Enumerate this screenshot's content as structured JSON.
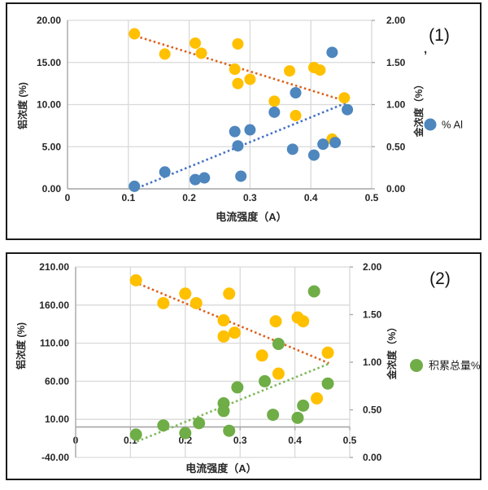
{
  "figure": {
    "background": "#FFFFFF",
    "colors": {
      "border": "#1A1A1A",
      "grid": "#D9D9D9",
      "axis": "#A6A6A6",
      "text": "#262626",
      "gold": "#FFC000",
      "blue": "#4E86BE",
      "green": "#6FAD47",
      "trend_orange": "#DD611C",
      "trend_blue": "#4472C4",
      "trend_green": "#7FB85A"
    }
  },
  "chart_data": [
    {
      "type": "scatter",
      "panel_label": "(1)",
      "stray_mark": ",",
      "xlabel": "电流强度（A）",
      "ylabel_left": "铝浓度 (%)",
      "ylabel_right": "金浓度（%）",
      "x_range": [
        0,
        0.5
      ],
      "x_tick_values": [
        0,
        0.1,
        0.2,
        0.3,
        0.4,
        0.5
      ],
      "x_tick_labels": [
        "0",
        "0.1",
        "0.2",
        "0.3",
        "0.4",
        "0.5"
      ],
      "y_left_range": [
        0,
        20
      ],
      "y_left_tick_values": [
        20,
        15,
        10,
        5,
        0
      ],
      "y_left_tick_labels": [
        "20.00",
        "15.00",
        "10.00",
        "5.00",
        "0.00"
      ],
      "y_right_range": [
        0,
        2
      ],
      "y_right_tick_values": [
        2,
        1.5,
        1,
        0.5,
        0
      ],
      "y_right_tick_labels": [
        "2.00",
        "1.50",
        "1.00",
        "0.50",
        "0.00"
      ],
      "grid": true,
      "legend": [
        {
          "label": "% Al",
          "color": "#4E86BE"
        }
      ],
      "series": [
        {
          "name": "gold-concentration",
          "color": "#FFC000",
          "axis": "right",
          "points": [
            [
              0.11,
              1.84
            ],
            [
              0.16,
              1.6
            ],
            [
              0.21,
              1.73
            ],
            [
              0.22,
              1.61
            ],
            [
              0.28,
              1.72
            ],
            [
              0.275,
              1.42
            ],
            [
              0.28,
              1.25
            ],
            [
              0.3,
              1.3
            ],
            [
              0.34,
              1.04
            ],
            [
              0.365,
              1.4
            ],
            [
              0.375,
              0.87
            ],
            [
              0.405,
              1.44
            ],
            [
              0.415,
              1.41
            ],
            [
              0.435,
              0.59
            ],
            [
              0.455,
              1.08
            ]
          ]
        },
        {
          "name": "pct-al",
          "label": "% Al",
          "color": "#4E86BE",
          "axis": "left",
          "points": [
            [
              0.11,
              0.3
            ],
            [
              0.16,
              2.0
            ],
            [
              0.21,
              1.1
            ],
            [
              0.225,
              1.3
            ],
            [
              0.285,
              1.5
            ],
            [
              0.275,
              6.8
            ],
            [
              0.28,
              5.1
            ],
            [
              0.3,
              7.0
            ],
            [
              0.34,
              9.1
            ],
            [
              0.375,
              11.4
            ],
            [
              0.37,
              4.7
            ],
            [
              0.405,
              4.0
            ],
            [
              0.42,
              5.3
            ],
            [
              0.44,
              5.5
            ],
            [
              0.435,
              16.2
            ],
            [
              0.46,
              9.4
            ]
          ]
        }
      ],
      "trendlines": [
        {
          "series": "gold-concentration",
          "axis": "right",
          "color": "#DD611C",
          "from": [
            0.105,
            1.83
          ],
          "to": [
            0.458,
            1.04
          ]
        },
        {
          "series": "pct-al",
          "axis": "left",
          "color": "#4472C4",
          "from": [
            0.115,
            0.1
          ],
          "to": [
            0.458,
            10.2
          ]
        }
      ]
    },
    {
      "type": "scatter",
      "panel_label": "(2)",
      "xlabel": "电流强度（A）",
      "ylabel_left": "铝浓度 (%)",
      "ylabel_right": "金浓度（%）",
      "x_range": [
        0,
        0.5
      ],
      "x_tick_values": [
        0,
        0.1,
        0.2,
        0.3,
        0.4,
        0.5
      ],
      "x_tick_labels": [
        "0",
        "0.1",
        "0.2",
        "0.3",
        "0.4",
        "0.5"
      ],
      "y_left_range": [
        -40,
        210
      ],
      "y_left_tick_values": [
        210,
        160,
        110,
        60,
        10,
        -40
      ],
      "y_left_tick_labels": [
        "210.00",
        "160.00",
        "110.00",
        "60.00",
        "10.00",
        "-40.00"
      ],
      "y_right_range": [
        0,
        2
      ],
      "y_right_tick_values": [
        2,
        1.5,
        1,
        0.5,
        0
      ],
      "y_right_tick_labels": [
        "2.00",
        "1.50",
        "1.00",
        "0.50",
        "0.00"
      ],
      "grid": true,
      "legend": [
        {
          "label": "积累总量%",
          "color": "#6FAD47"
        }
      ],
      "series": [
        {
          "name": "gold-concentration",
          "color": "#FFC000",
          "axis": "right",
          "points": [
            [
              0.11,
              1.86
            ],
            [
              0.16,
              1.62
            ],
            [
              0.2,
              1.72
            ],
            [
              0.22,
              1.62
            ],
            [
              0.28,
              1.72
            ],
            [
              0.27,
              1.44
            ],
            [
              0.29,
              1.31
            ],
            [
              0.27,
              1.27
            ],
            [
              0.34,
              1.07
            ],
            [
              0.365,
              1.43
            ],
            [
              0.405,
              1.47
            ],
            [
              0.415,
              1.43
            ],
            [
              0.37,
              0.88
            ],
            [
              0.44,
              0.62
            ],
            [
              0.46,
              1.1
            ]
          ]
        },
        {
          "name": "cumulative-total",
          "label": "积累总量%",
          "color": "#6FAD47",
          "axis": "left",
          "points": [
            [
              0.11,
              -10
            ],
            [
              0.16,
              2
            ],
            [
              0.2,
              -8
            ],
            [
              0.225,
              5
            ],
            [
              0.27,
              31
            ],
            [
              0.27,
              21
            ],
            [
              0.28,
              -5
            ],
            [
              0.295,
              52
            ],
            [
              0.345,
              60
            ],
            [
              0.37,
              109
            ],
            [
              0.36,
              16
            ],
            [
              0.405,
              12
            ],
            [
              0.415,
              28
            ],
            [
              0.435,
              178
            ],
            [
              0.46,
              57
            ]
          ]
        }
      ],
      "trendlines": [
        {
          "series": "gold-concentration",
          "axis": "right",
          "color": "#DD611C",
          "from": [
            0.108,
            1.84
          ],
          "to": [
            0.462,
            0.99
          ]
        },
        {
          "series": "cumulative-total",
          "axis": "left",
          "color": "#7FB85A",
          "from": [
            0.112,
            -19
          ],
          "to": [
            0.462,
            83
          ]
        }
      ]
    }
  ]
}
